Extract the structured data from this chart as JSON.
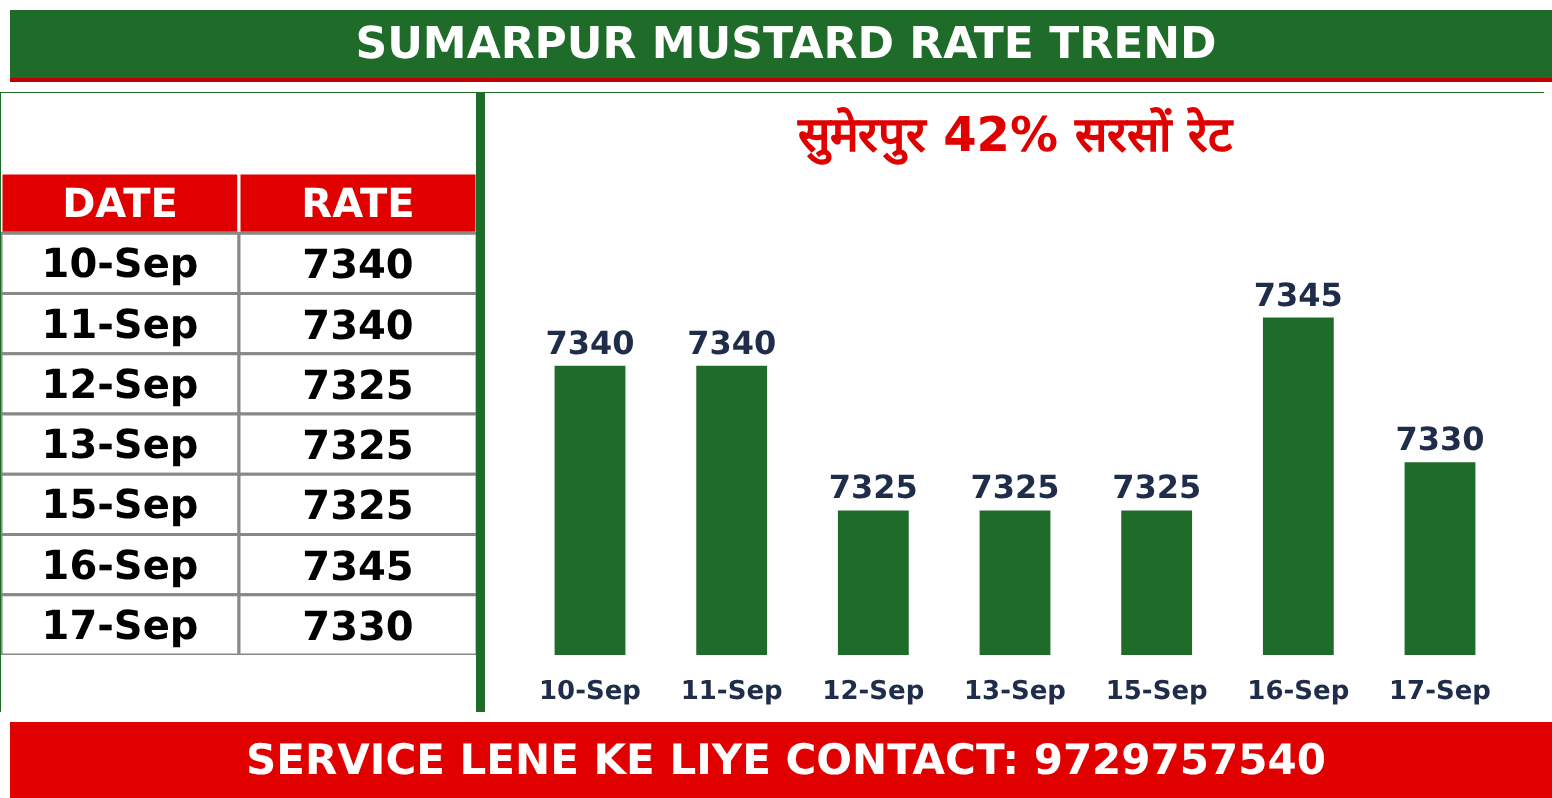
{
  "chart_data": [
    {
      "type": "other",
      "annotations": [
        "DATE",
        "RATE",
        "10-Sep",
        "7340",
        "11-Sep",
        "7340",
        "12-Sep",
        "7325",
        "13-Sep",
        "7325",
        "15-Sep",
        "7325",
        "16-Sep",
        "7345",
        "17-Sep",
        "7330"
      ]
    },
    {
      "type": "bar",
      "title": "SUMARPUR MUSTARD RATE TREND",
      "subtitle": "सुमेरपुर 42% सरसों रेट",
      "categories": [
        "10-Sep",
        "11-Sep",
        "12-Sep",
        "13-Sep",
        "15-Sep",
        "16-Sep",
        "17-Sep"
      ],
      "values": [
        7340,
        7340,
        7325,
        7325,
        7325,
        7345,
        7330
      ],
      "color": "#1e6b2a",
      "ylim": [
        7310,
        7360
      ],
      "data_labels": true,
      "grid": false,
      "annotations": [
        "SERVICE LENE KE LIYE CONTACT: 9729757540"
      ]
    }
  ]
}
